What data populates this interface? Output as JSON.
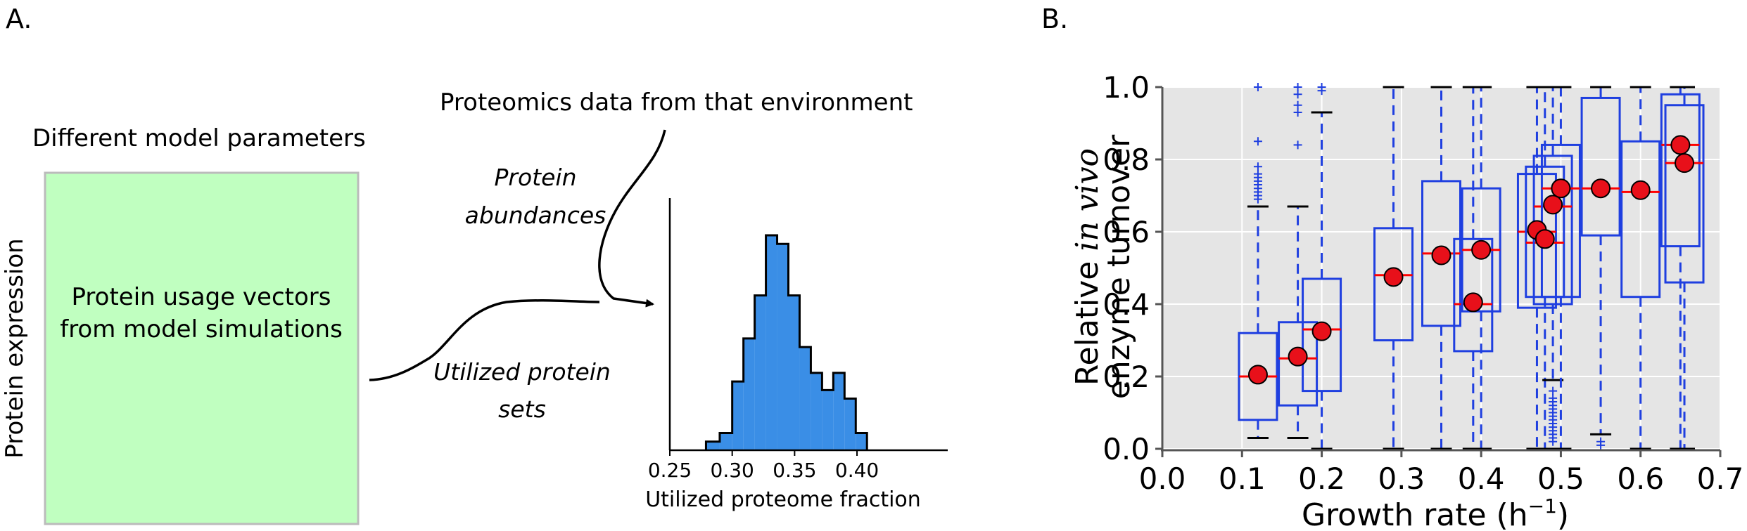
{
  "panel_a": {
    "label": "A.",
    "box_title": "Different model parameters",
    "box_line1": "Protein usage vectors",
    "box_line2": "from model simulations",
    "vertical_label": "Protein expression",
    "proteomics_label": "Proteomics data from that environment",
    "abundances_line1": "Protein",
    "abundances_line2": "abundances",
    "utilized_line1": "Utilized protein",
    "utilized_line2": "sets",
    "box_color": "#c0ffc0",
    "box_border_color": "#bbbbbb"
  },
  "panel_b": {
    "label": "B."
  },
  "chart_data": [
    {
      "type": "histogram",
      "xlabel": "Utilized proteome fraction",
      "ylabel": "",
      "xlim": [
        0.25,
        0.4727
      ],
      "xticks": [
        "0.25",
        "0.30",
        "0.35",
        "0.40"
      ],
      "bar_color": "#3a8ee6",
      "bins": [
        {
          "x0": 0.279,
          "x1": 0.29,
          "value": 1
        },
        {
          "x0": 0.29,
          "x1": 0.3,
          "value": 2
        },
        {
          "x0": 0.3,
          "x1": 0.309,
          "value": 8
        },
        {
          "x0": 0.309,
          "x1": 0.318,
          "value": 13
        },
        {
          "x0": 0.318,
          "x1": 0.327,
          "value": 18
        },
        {
          "x0": 0.327,
          "x1": 0.336,
          "value": 25
        },
        {
          "x0": 0.336,
          "x1": 0.345,
          "value": 24
        },
        {
          "x0": 0.345,
          "x1": 0.354,
          "value": 18
        },
        {
          "x0": 0.354,
          "x1": 0.363,
          "value": 12
        },
        {
          "x0": 0.363,
          "x1": 0.372,
          "value": 9
        },
        {
          "x0": 0.372,
          "x1": 0.381,
          "value": 7
        },
        {
          "x0": 0.381,
          "x1": 0.39,
          "value": 9
        },
        {
          "x0": 0.39,
          "x1": 0.399,
          "value": 6
        },
        {
          "x0": 0.399,
          "x1": 0.408,
          "value": 2
        }
      ]
    },
    {
      "type": "box",
      "xlabel": "Growth rate (h",
      "xlabel_sup": "−1",
      "xlabel_end": ")",
      "ylabel_line1_pre": "Relative ",
      "ylabel_line1_it": "in vivo",
      "ylabel_line2": "enzyme turnover",
      "xlim": [
        0.0,
        0.7
      ],
      "ylim": [
        0.0,
        1.0
      ],
      "xticks": [
        "0.0",
        "0.1",
        "0.2",
        "0.3",
        "0.4",
        "0.5",
        "0.6",
        "0.7"
      ],
      "yticks": [
        "0.0",
        "0.2",
        "0.4",
        "0.6",
        "0.8",
        "1.0"
      ],
      "grid": true,
      "background_color": "#e5e5e5",
      "box_color": "#1f3fe0",
      "median_color": "#ff0000",
      "mean_marker_color": "#e8101a",
      "boxes": [
        {
          "x": 0.12,
          "q1": 0.08,
          "median": 0.2,
          "q3": 0.32,
          "whislo": 0.03,
          "whishi": 0.67,
          "mean": 0.205,
          "fliers": [
            0.69,
            0.7,
            0.71,
            0.72,
            0.73,
            0.74,
            0.75,
            0.76,
            0.78,
            0.85,
            1.0
          ]
        },
        {
          "x": 0.17,
          "q1": 0.12,
          "median": 0.25,
          "q3": 0.35,
          "whislo": 0.03,
          "whishi": 0.67,
          "mean": 0.255,
          "fliers": [
            0.84,
            0.93,
            0.95,
            0.98,
            1.0
          ]
        },
        {
          "x": 0.2,
          "q1": 0.16,
          "median": 0.33,
          "q3": 0.47,
          "whislo": 0.0,
          "whishi": 0.93,
          "mean": 0.325,
          "fliers": [
            0.99,
            1.0
          ]
        },
        {
          "x": 0.29,
          "q1": 0.3,
          "median": 0.48,
          "q3": 0.61,
          "whislo": 0.0,
          "whishi": 1.0,
          "mean": 0.475,
          "fliers": []
        },
        {
          "x": 0.35,
          "q1": 0.34,
          "median": 0.54,
          "q3": 0.74,
          "whislo": 0.0,
          "whishi": 1.0,
          "mean": 0.535,
          "fliers": []
        },
        {
          "x": 0.39,
          "q1": 0.27,
          "median": 0.4,
          "q3": 0.58,
          "whislo": 0.0,
          "whishi": 1.0,
          "mean": 0.405,
          "fliers": []
        },
        {
          "x": 0.4,
          "q1": 0.38,
          "median": 0.55,
          "q3": 0.72,
          "whislo": 0.0,
          "whishi": 1.0,
          "mean": 0.55,
          "fliers": []
        },
        {
          "x": 0.47,
          "q1": 0.39,
          "median": 0.6,
          "q3": 0.76,
          "whislo": 0.0,
          "whishi": 1.0,
          "mean": 0.605,
          "fliers": []
        },
        {
          "x": 0.48,
          "q1": 0.42,
          "median": 0.57,
          "q3": 0.78,
          "whislo": 0.0,
          "whishi": 1.0,
          "mean": 0.58,
          "fliers": []
        },
        {
          "x": 0.49,
          "q1": 0.4,
          "median": 0.67,
          "q3": 0.81,
          "whislo": 0.19,
          "whishi": 1.0,
          "mean": 0.675,
          "fliers": [
            0.02,
            0.03,
            0.04,
            0.05,
            0.06,
            0.07,
            0.08,
            0.09,
            0.1,
            0.11,
            0.12,
            0.13,
            0.14,
            0.16
          ]
        },
        {
          "x": 0.5,
          "q1": 0.42,
          "median": 0.72,
          "q3": 0.84,
          "whislo": 0.0,
          "whishi": 1.0,
          "mean": 0.72,
          "fliers": []
        },
        {
          "x": 0.55,
          "q1": 0.59,
          "median": 0.72,
          "q3": 0.97,
          "whislo": 0.04,
          "whishi": 1.0,
          "mean": 0.72,
          "fliers": [
            0.01,
            0.02
          ]
        },
        {
          "x": 0.6,
          "q1": 0.42,
          "median": 0.71,
          "q3": 0.85,
          "whislo": 0.0,
          "whishi": 1.0,
          "mean": 0.715,
          "fliers": []
        },
        {
          "x": 0.65,
          "q1": 0.56,
          "median": 0.84,
          "q3": 0.98,
          "whislo": 0.0,
          "whishi": 1.0,
          "mean": 0.84,
          "fliers": []
        },
        {
          "x": 0.655,
          "q1": 0.46,
          "median": 0.79,
          "q3": 0.95,
          "whislo": 0.0,
          "whishi": 1.0,
          "mean": 0.79,
          "fliers": []
        }
      ]
    }
  ]
}
